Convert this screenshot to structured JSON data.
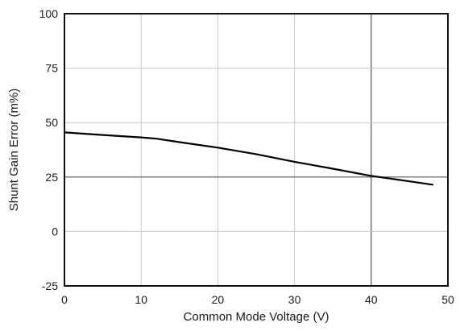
{
  "chart_data": {
    "type": "line",
    "title": "",
    "xlabel": "Common Mode Voltage (V)",
    "ylabel": "Shunt Gain Error (m%)",
    "xlim": [
      0,
      50
    ],
    "ylim": [
      -25,
      100
    ],
    "xticks": [
      "0",
      "10",
      "20",
      "30",
      "40",
      "50"
    ],
    "yticks": [
      "100",
      "75",
      "50",
      "25",
      "0",
      "-25"
    ],
    "grid": true,
    "grid_highlight": {
      "x": 40,
      "y": 25
    },
    "series": [
      {
        "x": [
          0,
          5,
          10,
          12,
          15,
          20,
          25,
          30,
          35,
          40,
          45,
          48
        ],
        "y": [
          45.5,
          44.3,
          43.2,
          42.6,
          41.0,
          38.5,
          35.5,
          32.0,
          28.8,
          25.5,
          23.0,
          21.5
        ],
        "color": "#000000"
      }
    ]
  }
}
